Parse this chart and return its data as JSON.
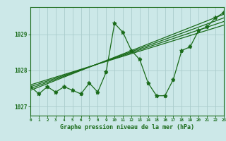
{
  "hours": [
    0,
    1,
    2,
    3,
    4,
    5,
    6,
    7,
    8,
    9,
    10,
    11,
    12,
    13,
    14,
    15,
    16,
    17,
    18,
    19,
    20,
    21,
    22,
    23
  ],
  "pressure": [
    1027.55,
    1027.35,
    1027.55,
    1027.4,
    1027.55,
    1027.45,
    1027.35,
    1027.65,
    1027.4,
    1027.95,
    1029.3,
    1029.05,
    1028.55,
    1028.3,
    1027.65,
    1027.3,
    1027.3,
    1027.75,
    1028.55,
    1028.65,
    1029.1,
    1029.2,
    1029.45,
    1029.6
  ],
  "trend_lines": [
    [
      1027.45,
      1029.55
    ],
    [
      1027.5,
      1029.45
    ],
    [
      1027.55,
      1029.35
    ],
    [
      1027.6,
      1029.25
    ]
  ],
  "bg_color": "#cce8e8",
  "line_color": "#1a6b1a",
  "grid_color": "#aacccc",
  "xlabel": "Graphe pression niveau de la mer (hPa)",
  "ylabel_ticks": [
    1027,
    1028,
    1029
  ],
  "ylim": [
    1026.75,
    1029.75
  ],
  "xlim": [
    0,
    23
  ]
}
